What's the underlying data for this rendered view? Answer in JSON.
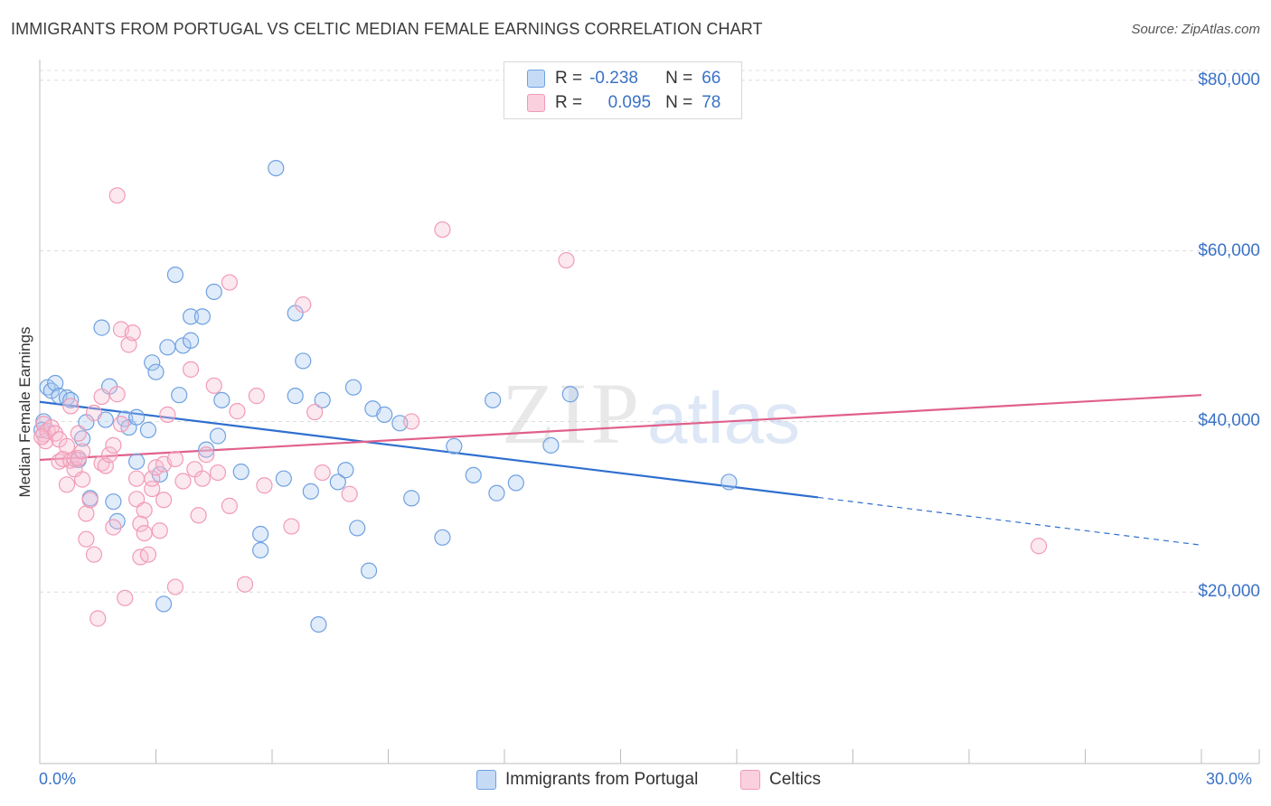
{
  "title": "IMMIGRANTS FROM PORTUGAL VS CELTIC MEDIAN FEMALE EARNINGS CORRELATION CHART",
  "source": "Source: ZipAtlas.com",
  "watermark": {
    "zip": "ZIP",
    "atlas": "atlas"
  },
  "colors": {
    "blue": "#6fa1e0",
    "blue_line": "#2f6fcf",
    "pink": "#f19bb6",
    "pink_line": "#e0608c",
    "accent_text": "#3a72c6"
  },
  "legend_top": {
    "rows": [
      {
        "r_label": "R =",
        "r_value": "-0.238",
        "n_label": "N =",
        "n_value": "66"
      },
      {
        "r_label": "R =",
        "r_value": "0.095",
        "n_label": "N =",
        "n_value": "78"
      }
    ]
  },
  "legend_bottom": {
    "series1": "Immigrants from Portugal",
    "series2": "Celtics"
  },
  "chart_data": {
    "type": "scatter",
    "title": "IMMIGRANTS FROM PORTUGAL VS CELTIC MEDIAN FEMALE EARNINGS CORRELATION CHART",
    "xlabel": "",
    "ylabel": "Median Female Earnings",
    "xlim": [
      0,
      30
    ],
    "ylim": [
      0,
      82000
    ],
    "x_tick_labels": [
      "0.0%",
      "30.0%"
    ],
    "y_ticks": [
      {
        "value": 20000,
        "label": "$20,000"
      },
      {
        "value": 40000,
        "label": "$40,000"
      },
      {
        "value": 60000,
        "label": "$60,000"
      },
      {
        "value": 80000,
        "label": "$80,000"
      }
    ],
    "series": [
      {
        "name": "Immigrants from Portugal",
        "color": "#6fa1e0",
        "trend": {
          "x0": 0,
          "y0": 42300,
          "x1": 20.1,
          "y1": 31100,
          "dash_to_x": 30,
          "dash_to_y": 25500
        },
        "points": [
          [
            0.1,
            40000
          ],
          [
            0.2,
            44000
          ],
          [
            0.3,
            43600
          ],
          [
            0.4,
            44500
          ],
          [
            0.5,
            43000
          ],
          [
            0.7,
            42800
          ],
          [
            0.8,
            42500
          ],
          [
            1.0,
            35500
          ],
          [
            1.1,
            38000
          ],
          [
            1.2,
            39900
          ],
          [
            1.3,
            31000
          ],
          [
            1.6,
            51000
          ],
          [
            1.7,
            40200
          ],
          [
            1.8,
            44100
          ],
          [
            1.9,
            30600
          ],
          [
            2.0,
            28300
          ],
          [
            2.2,
            40300
          ],
          [
            2.3,
            39300
          ],
          [
            2.5,
            40500
          ],
          [
            2.5,
            35300
          ],
          [
            2.8,
            39000
          ],
          [
            2.9,
            46900
          ],
          [
            3.0,
            45800
          ],
          [
            3.1,
            33800
          ],
          [
            3.2,
            18600
          ],
          [
            3.3,
            48700
          ],
          [
            3.5,
            57200
          ],
          [
            3.6,
            43100
          ],
          [
            3.7,
            48900
          ],
          [
            3.9,
            52300
          ],
          [
            3.9,
            49500
          ],
          [
            4.2,
            52300
          ],
          [
            4.3,
            36700
          ],
          [
            4.5,
            55200
          ],
          [
            4.6,
            38300
          ],
          [
            4.7,
            42500
          ],
          [
            5.2,
            34100
          ],
          [
            5.7,
            26800
          ],
          [
            5.7,
            24900
          ],
          [
            6.1,
            69700
          ],
          [
            6.3,
            33300
          ],
          [
            6.6,
            43000
          ],
          [
            6.6,
            52700
          ],
          [
            6.8,
            47100
          ],
          [
            7.0,
            31800
          ],
          [
            7.2,
            16200
          ],
          [
            7.3,
            42500
          ],
          [
            7.7,
            32900
          ],
          [
            7.9,
            34300
          ],
          [
            8.1,
            44000
          ],
          [
            8.2,
            27500
          ],
          [
            8.5,
            22500
          ],
          [
            8.6,
            41500
          ],
          [
            8.9,
            40800
          ],
          [
            9.3,
            39800
          ],
          [
            9.6,
            31000
          ],
          [
            10.4,
            26400
          ],
          [
            10.7,
            37100
          ],
          [
            11.2,
            33700
          ],
          [
            11.7,
            42500
          ],
          [
            11.8,
            31600
          ],
          [
            12.3,
            32800
          ],
          [
            13.2,
            37200
          ],
          [
            13.7,
            43200
          ],
          [
            17.8,
            32900
          ],
          [
            0.05,
            39000
          ]
        ]
      },
      {
        "name": "Celtics",
        "color": "#f19bb6",
        "trend": {
          "x0": 0,
          "y0": 35500,
          "x1": 30,
          "y1": 43100
        },
        "points": [
          [
            0.1,
            38500
          ],
          [
            0.1,
            39700
          ],
          [
            0.15,
            37700
          ],
          [
            0.2,
            38900
          ],
          [
            0.3,
            39300
          ],
          [
            0.4,
            38600
          ],
          [
            0.5,
            37900
          ],
          [
            0.5,
            35300
          ],
          [
            0.6,
            35600
          ],
          [
            0.7,
            37100
          ],
          [
            0.7,
            32600
          ],
          [
            0.8,
            35400
          ],
          [
            0.8,
            41800
          ],
          [
            0.9,
            34400
          ],
          [
            0.9,
            35600
          ],
          [
            1.0,
            38600
          ],
          [
            1.0,
            35700
          ],
          [
            1.1,
            36500
          ],
          [
            1.1,
            33200
          ],
          [
            1.2,
            29200
          ],
          [
            1.2,
            26200
          ],
          [
            1.3,
            30800
          ],
          [
            1.4,
            41000
          ],
          [
            1.4,
            24400
          ],
          [
            1.5,
            16900
          ],
          [
            1.6,
            42900
          ],
          [
            1.6,
            35100
          ],
          [
            1.7,
            34800
          ],
          [
            1.8,
            36100
          ],
          [
            1.9,
            37200
          ],
          [
            1.9,
            27600
          ],
          [
            2.0,
            43200
          ],
          [
            2.0,
            66500
          ],
          [
            2.1,
            39700
          ],
          [
            2.1,
            50800
          ],
          [
            2.2,
            19300
          ],
          [
            2.3,
            49000
          ],
          [
            2.4,
            50400
          ],
          [
            2.5,
            33300
          ],
          [
            2.5,
            30900
          ],
          [
            2.6,
            28000
          ],
          [
            2.6,
            24100
          ],
          [
            2.7,
            29600
          ],
          [
            2.7,
            26900
          ],
          [
            2.8,
            24400
          ],
          [
            2.9,
            32100
          ],
          [
            2.9,
            33300
          ],
          [
            3.0,
            34600
          ],
          [
            3.1,
            27200
          ],
          [
            3.2,
            35000
          ],
          [
            3.2,
            30800
          ],
          [
            3.3,
            40800
          ],
          [
            3.5,
            35600
          ],
          [
            3.5,
            20600
          ],
          [
            3.7,
            33000
          ],
          [
            3.9,
            46100
          ],
          [
            4.0,
            34400
          ],
          [
            4.1,
            29000
          ],
          [
            4.2,
            33300
          ],
          [
            4.3,
            36100
          ],
          [
            4.5,
            44200
          ],
          [
            4.6,
            34000
          ],
          [
            4.9,
            30100
          ],
          [
            4.9,
            56300
          ],
          [
            5.1,
            41200
          ],
          [
            5.3,
            20900
          ],
          [
            5.6,
            43000
          ],
          [
            5.8,
            32500
          ],
          [
            6.5,
            27700
          ],
          [
            6.8,
            53700
          ],
          [
            7.1,
            41100
          ],
          [
            7.3,
            34000
          ],
          [
            8.0,
            31500
          ],
          [
            9.6,
            40000
          ],
          [
            10.4,
            62500
          ],
          [
            13.6,
            58900
          ],
          [
            25.8,
            25400
          ],
          [
            0.05,
            38200
          ]
        ]
      }
    ]
  }
}
